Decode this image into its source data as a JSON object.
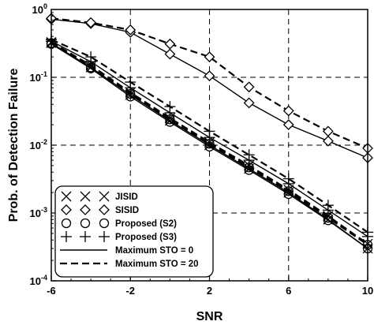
{
  "chart_data": {
    "type": "line",
    "xlabel": "SNR",
    "ylabel": "Prob. of Detection Failure",
    "xlim": [
      -6,
      10
    ],
    "ylim": [
      0.0001,
      1
    ],
    "yscale": "log",
    "grid": true,
    "grid_style": "dashed",
    "legend_position": "lower-left",
    "x_ticks": [
      -6,
      -2,
      2,
      6,
      10
    ],
    "x_tick_labels": [
      "-6",
      "-2",
      "2",
      "6",
      "10"
    ],
    "y_ticks": [
      1,
      0.1,
      0.01,
      0.001,
      0.0001
    ],
    "y_tick_labels": [
      {
        "base": "10",
        "exp": "0"
      },
      {
        "base": "10",
        "exp": "-1"
      },
      {
        "base": "10",
        "exp": "-2"
      },
      {
        "base": "10",
        "exp": "-3"
      },
      {
        "base": "10",
        "exp": "-4"
      }
    ],
    "legend": {
      "markers": [
        {
          "label": "JISID",
          "marker": "x"
        },
        {
          "label": "SISID",
          "marker": "diamond"
        },
        {
          "label": "Proposed (S2)",
          "marker": "circle"
        },
        {
          "label": "Proposed (S3)",
          "marker": "plus"
        }
      ],
      "lines": [
        {
          "label": "Maximum STO = 0",
          "style": "solid"
        },
        {
          "label": "Maximum STO = 20",
          "style": "dashed"
        }
      ]
    },
    "series": [
      {
        "method": "SISID",
        "sto": 0,
        "marker": "diamond",
        "style": "solid",
        "x": [
          -6,
          -4,
          -2,
          0,
          2,
          4,
          6,
          8,
          10
        ],
        "y": [
          0.72,
          0.62,
          0.46,
          0.22,
          0.105,
          0.042,
          0.02,
          0.0115,
          0.0065
        ]
      },
      {
        "method": "SISID",
        "sto": 20,
        "marker": "diamond",
        "style": "dashed",
        "x": [
          -6,
          -4,
          -2,
          0,
          2,
          4,
          6,
          8,
          10
        ],
        "y": [
          0.74,
          0.64,
          0.5,
          0.31,
          0.2,
          0.072,
          0.032,
          0.016,
          0.009
        ]
      },
      {
        "method": "JISID",
        "sto": 0,
        "marker": "x",
        "style": "solid",
        "x": [
          -6,
          -4,
          -2,
          0,
          2,
          4,
          6,
          8,
          10
        ],
        "y": [
          0.32,
          0.14,
          0.055,
          0.023,
          0.01,
          0.0045,
          0.002,
          0.0008,
          0.0003
        ]
      },
      {
        "method": "JISID",
        "sto": 20,
        "marker": "x",
        "style": "dashed",
        "x": [
          -6,
          -4,
          -2,
          0,
          2,
          4,
          6,
          8,
          10
        ],
        "y": [
          0.33,
          0.15,
          0.06,
          0.025,
          0.011,
          0.005,
          0.0022,
          0.0009,
          0.00035
        ]
      },
      {
        "method": "Proposed (S2)",
        "sto": 0,
        "marker": "circle",
        "style": "solid",
        "x": [
          -6,
          -4,
          -2,
          0,
          2,
          4,
          6,
          8,
          10
        ],
        "y": [
          0.31,
          0.135,
          0.052,
          0.022,
          0.0095,
          0.0043,
          0.0019,
          0.00078,
          0.0003
        ]
      },
      {
        "method": "Proposed (S2)",
        "sto": 20,
        "marker": "circle",
        "style": "dashed",
        "x": [
          -6,
          -4,
          -2,
          0,
          2,
          4,
          6,
          8,
          10
        ],
        "y": [
          0.32,
          0.14,
          0.057,
          0.024,
          0.0105,
          0.0047,
          0.0021,
          0.00085,
          0.00034
        ]
      },
      {
        "method": "Proposed (S3)",
        "sto": 0,
        "marker": "plus",
        "style": "solid",
        "x": [
          -6,
          -4,
          -2,
          0,
          2,
          4,
          6,
          8,
          10
        ],
        "y": [
          0.34,
          0.17,
          0.07,
          0.03,
          0.013,
          0.006,
          0.0027,
          0.0011,
          0.00045
        ]
      },
      {
        "method": "Proposed (S3)",
        "sto": 20,
        "marker": "plus",
        "style": "dashed",
        "x": [
          -6,
          -4,
          -2,
          0,
          2,
          4,
          6,
          8,
          10
        ],
        "y": [
          0.36,
          0.2,
          0.085,
          0.037,
          0.016,
          0.0072,
          0.0032,
          0.0013,
          0.00052
        ]
      }
    ]
  }
}
